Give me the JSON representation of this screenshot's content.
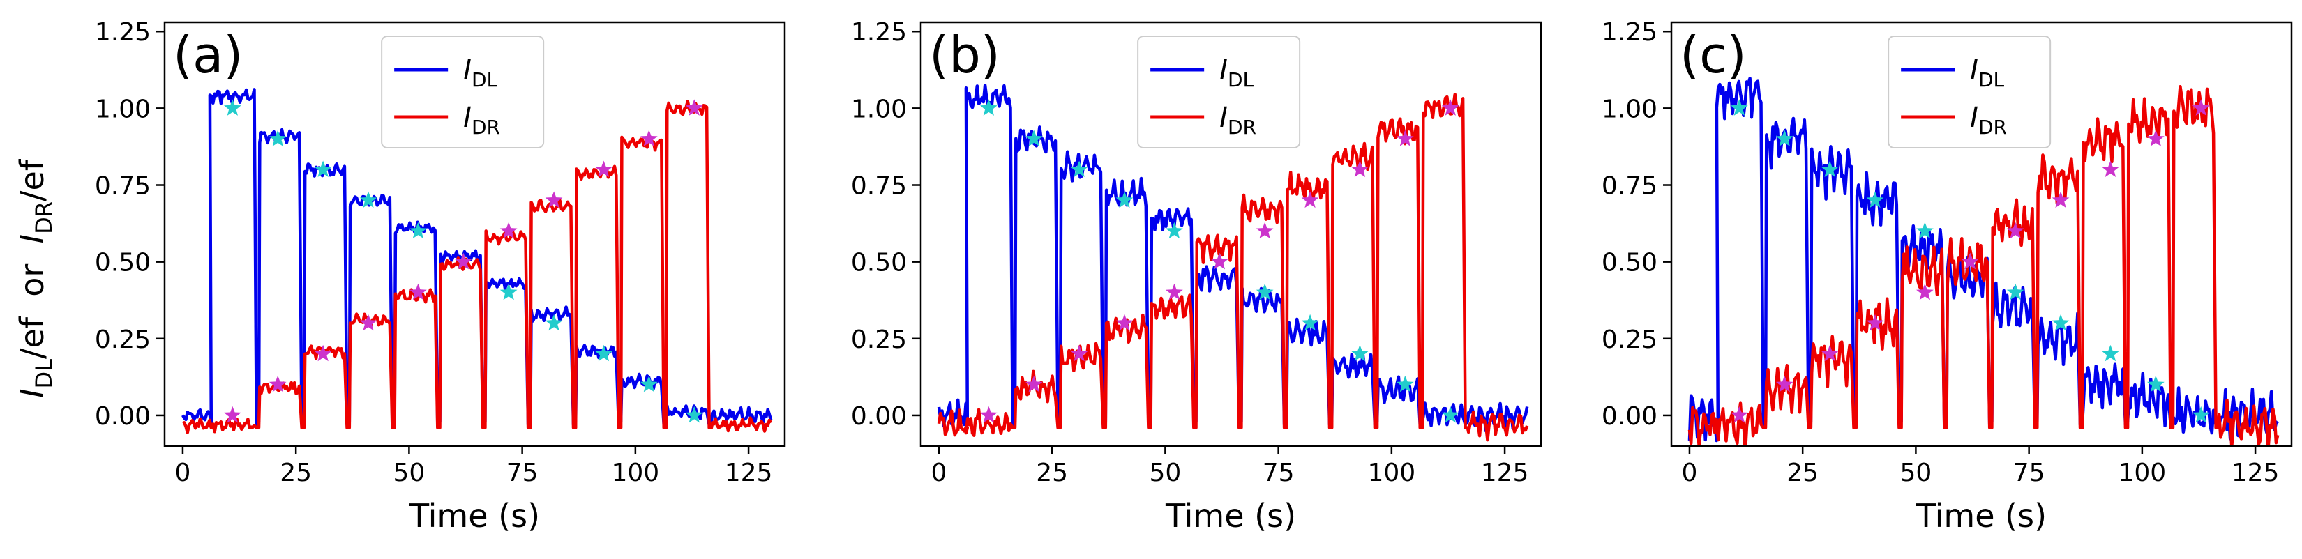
{
  "figure": {
    "ylabel_parts": {
      "I1": "I",
      "sub1": "DL",
      "mid": "/ef  or  ",
      "I2": "I",
      "sub2": "DR",
      "tail": "/ef"
    }
  },
  "colors": {
    "dl": "#0000ee",
    "dr": "#ee0000",
    "dl_marker": "#22cccc",
    "dr_marker": "#cc33cc"
  },
  "chart_data": [
    {
      "type": "line",
      "panel_label": "(a)",
      "xlabel": "Time (s)",
      "xlim": [
        -4,
        133
      ],
      "ylim": [
        -0.1,
        1.28
      ],
      "xticks": [
        0,
        25,
        50,
        75,
        100,
        125
      ],
      "yticks": [
        0.0,
        0.25,
        0.5,
        0.75,
        1.0,
        1.25
      ],
      "ytick_labels": [
        "0.00",
        "0.25",
        "0.50",
        "0.75",
        "1.00",
        "1.25"
      ],
      "legend": {
        "position": "top-center",
        "entries": [
          {
            "base": "I",
            "sub": "DL",
            "series": "dl"
          },
          {
            "base": "I",
            "sub": "DR",
            "series": "dr"
          }
        ]
      },
      "segments": [
        {
          "t0": 0,
          "t1": 6,
          "dl": 0.0,
          "dr": -0.03
        },
        {
          "t0": 6,
          "t1": 16,
          "dl": 1.04,
          "dr": -0.03
        },
        {
          "t0": 17,
          "t1": 26,
          "dl": 0.91,
          "dr": 0.09
        },
        {
          "t0": 27,
          "t1": 36,
          "dl": 0.8,
          "dr": 0.21
        },
        {
          "t0": 37,
          "t1": 46,
          "dl": 0.7,
          "dr": 0.31
        },
        {
          "t0": 47,
          "t1": 56,
          "dl": 0.61,
          "dr": 0.39
        },
        {
          "t0": 57,
          "t1": 66,
          "dl": 0.52,
          "dr": 0.49
        },
        {
          "t0": 67,
          "t1": 76,
          "dl": 0.43,
          "dr": 0.58
        },
        {
          "t0": 77,
          "t1": 86,
          "dl": 0.33,
          "dr": 0.68
        },
        {
          "t0": 87,
          "t1": 96,
          "dl": 0.21,
          "dr": 0.79
        },
        {
          "t0": 97,
          "t1": 106,
          "dl": 0.11,
          "dr": 0.89
        },
        {
          "t0": 107,
          "t1": 116,
          "dl": 0.01,
          "dr": 1.0
        },
        {
          "t0": 117,
          "t1": 130,
          "dl": 0.0,
          "dr": -0.03
        }
      ],
      "noise": 0.012,
      "markers": {
        "dl": [
          [
            11,
            1.0
          ],
          [
            21,
            0.9
          ],
          [
            31,
            0.8
          ],
          [
            41,
            0.7
          ],
          [
            52,
            0.6
          ],
          [
            62,
            0.5
          ],
          [
            72,
            0.4
          ],
          [
            82,
            0.3
          ],
          [
            93,
            0.2
          ],
          [
            103,
            0.1
          ],
          [
            113,
            0.0
          ]
        ],
        "dr": [
          [
            11,
            0.0
          ],
          [
            21,
            0.1
          ],
          [
            31,
            0.2
          ],
          [
            41,
            0.3
          ],
          [
            52,
            0.4
          ],
          [
            62,
            0.5
          ],
          [
            72,
            0.6
          ],
          [
            82,
            0.7
          ],
          [
            93,
            0.8
          ],
          [
            103,
            0.9
          ],
          [
            113,
            1.0
          ]
        ]
      }
    },
    {
      "type": "line",
      "panel_label": "(b)",
      "xlabel": "Time (s)",
      "xlim": [
        -4,
        133
      ],
      "ylim": [
        -0.1,
        1.28
      ],
      "xticks": [
        0,
        25,
        50,
        75,
        100,
        125
      ],
      "yticks": [
        0.0,
        0.25,
        0.5,
        0.75,
        1.0,
        1.25
      ],
      "ytick_labels": [
        "0.00",
        "0.25",
        "0.50",
        "0.75",
        "1.00",
        "1.25"
      ],
      "legend": {
        "position": "top-center",
        "entries": [
          {
            "base": "I",
            "sub": "DL",
            "series": "dl"
          },
          {
            "base": "I",
            "sub": "DR",
            "series": "dr"
          }
        ]
      },
      "segments": [
        {
          "t0": 0,
          "t1": 6,
          "dl": 0.0,
          "dr": -0.03
        },
        {
          "t0": 6,
          "t1": 16,
          "dl": 1.03,
          "dr": -0.03
        },
        {
          "t0": 17,
          "t1": 26,
          "dl": 0.9,
          "dr": 0.09
        },
        {
          "t0": 27,
          "t1": 36,
          "dl": 0.81,
          "dr": 0.19
        },
        {
          "t0": 37,
          "t1": 46,
          "dl": 0.72,
          "dr": 0.28
        },
        {
          "t0": 47,
          "t1": 56,
          "dl": 0.64,
          "dr": 0.35
        },
        {
          "t0": 57,
          "t1": 66,
          "dl": 0.45,
          "dr": 0.55
        },
        {
          "t0": 67,
          "t1": 76,
          "dl": 0.37,
          "dr": 0.67
        },
        {
          "t0": 77,
          "t1": 86,
          "dl": 0.27,
          "dr": 0.74
        },
        {
          "t0": 87,
          "t1": 96,
          "dl": 0.16,
          "dr": 0.84
        },
        {
          "t0": 97,
          "t1": 106,
          "dl": 0.08,
          "dr": 0.93
        },
        {
          "t0": 107,
          "t1": 116,
          "dl": 0.0,
          "dr": 1.0
        },
        {
          "t0": 117,
          "t1": 130,
          "dl": 0.0,
          "dr": -0.03
        }
      ],
      "noise": 0.025,
      "markers": {
        "dl": [
          [
            11,
            1.0
          ],
          [
            21,
            0.9
          ],
          [
            31,
            0.8
          ],
          [
            41,
            0.7
          ],
          [
            52,
            0.6
          ],
          [
            62,
            0.5
          ],
          [
            72,
            0.4
          ],
          [
            82,
            0.3
          ],
          [
            93,
            0.2
          ],
          [
            103,
            0.1
          ],
          [
            113,
            0.0
          ]
        ],
        "dr": [
          [
            11,
            0.0
          ],
          [
            21,
            0.1
          ],
          [
            31,
            0.2
          ],
          [
            41,
            0.3
          ],
          [
            52,
            0.4
          ],
          [
            62,
            0.5
          ],
          [
            72,
            0.6
          ],
          [
            82,
            0.7
          ],
          [
            93,
            0.8
          ],
          [
            103,
            0.9
          ],
          [
            113,
            1.0
          ]
        ]
      }
    },
    {
      "type": "line",
      "panel_label": "(c)",
      "xlabel": "Time (s)",
      "xlim": [
        -4,
        133
      ],
      "ylim": [
        -0.1,
        1.28
      ],
      "xticks": [
        0,
        25,
        50,
        75,
        100,
        125
      ],
      "yticks": [
        0.0,
        0.25,
        0.5,
        0.75,
        1.0,
        1.25
      ],
      "ytick_labels": [
        "0.00",
        "0.25",
        "0.50",
        "0.75",
        "1.00",
        "1.25"
      ],
      "legend": {
        "position": "top-center",
        "entries": [
          {
            "base": "I",
            "sub": "DL",
            "series": "dl"
          },
          {
            "base": "I",
            "sub": "DR",
            "series": "dr"
          }
        ]
      },
      "segments": [
        {
          "t0": 0,
          "t1": 6,
          "dl": 0.0,
          "dr": -0.03
        },
        {
          "t0": 6,
          "t1": 16,
          "dl": 1.04,
          "dr": -0.03
        },
        {
          "t0": 17,
          "t1": 26,
          "dl": 0.9,
          "dr": 0.09
        },
        {
          "t0": 27,
          "t1": 36,
          "dl": 0.8,
          "dr": 0.19
        },
        {
          "t0": 37,
          "t1": 46,
          "dl": 0.7,
          "dr": 0.3
        },
        {
          "t0": 47,
          "t1": 56,
          "dl": 0.55,
          "dr": 0.47
        },
        {
          "t0": 57,
          "t1": 66,
          "dl": 0.45,
          "dr": 0.5
        },
        {
          "t0": 67,
          "t1": 76,
          "dl": 0.35,
          "dr": 0.62
        },
        {
          "t0": 77,
          "t1": 86,
          "dl": 0.25,
          "dr": 0.78
        },
        {
          "t0": 87,
          "t1": 96,
          "dl": 0.1,
          "dr": 0.9
        },
        {
          "t0": 97,
          "t1": 106,
          "dl": 0.05,
          "dr": 0.96
        },
        {
          "t0": 107,
          "t1": 116,
          "dl": 0.0,
          "dr": 1.0
        },
        {
          "t0": 117,
          "t1": 130,
          "dl": 0.0,
          "dr": -0.03
        }
      ],
      "noise": 0.045,
      "markers": {
        "dl": [
          [
            11,
            1.0
          ],
          [
            21,
            0.9
          ],
          [
            31,
            0.8
          ],
          [
            41,
            0.7
          ],
          [
            52,
            0.6
          ],
          [
            62,
            0.5
          ],
          [
            72,
            0.4
          ],
          [
            82,
            0.3
          ],
          [
            93,
            0.2
          ],
          [
            103,
            0.1
          ],
          [
            113,
            0.0
          ]
        ],
        "dr": [
          [
            11,
            0.0
          ],
          [
            21,
            0.1
          ],
          [
            31,
            0.2
          ],
          [
            41,
            0.3
          ],
          [
            52,
            0.4
          ],
          [
            62,
            0.5
          ],
          [
            72,
            0.6
          ],
          [
            82,
            0.7
          ],
          [
            93,
            0.8
          ],
          [
            103,
            0.9
          ],
          [
            113,
            1.0
          ]
        ]
      }
    }
  ]
}
